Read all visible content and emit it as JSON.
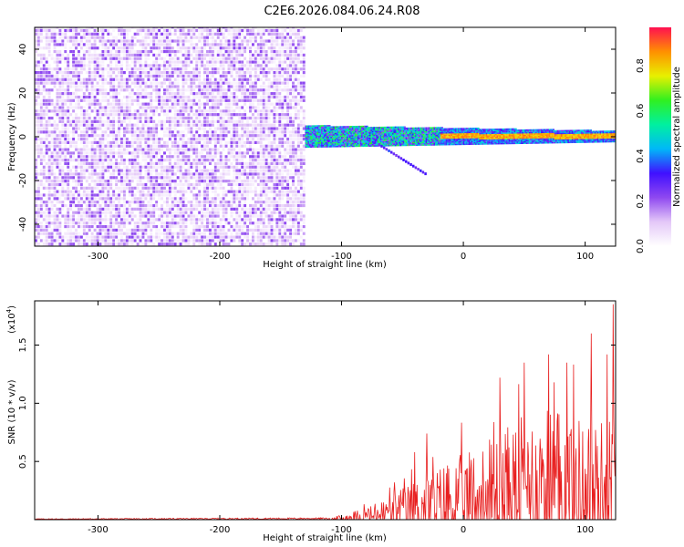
{
  "title": "C2E6.2026.084.06.24.R08",
  "chart_data": [
    {
      "type": "heatmap",
      "name": "spectrogram",
      "xlabel": "Height of straight line (km)",
      "ylabel": "Frequency (Hz)",
      "xlim": [
        -352,
        125
      ],
      "ylim": [
        -50,
        50
      ],
      "xticks": [
        -300,
        -200,
        -100,
        0,
        100
      ],
      "yticks": [
        -40,
        -20,
        0,
        20,
        40
      ],
      "colorbar": {
        "label": "Normalized spectral amplitude",
        "range": [
          0,
          0.97
        ],
        "ticks": [
          "0.0",
          "0.2",
          "0.4",
          "0.6",
          "0.8"
        ],
        "tick_values": [
          0.0,
          0.2,
          0.4,
          0.6,
          0.8
        ],
        "colors": [
          "#ffffff",
          "#e4c8f8",
          "#8f48f0",
          "#4010ff",
          "#00b8f8",
          "#00f0a0",
          "#30f020",
          "#e8f000",
          "#ff9000",
          "#ff1050"
        ]
      },
      "features": {
        "noise_region_x": [
          -352,
          -130
        ],
        "noise_amplitude": 0.15,
        "noise_frequency_range": [
          -50,
          50
        ],
        "signal_start_x": -130,
        "signal_center_frequency": 0,
        "signal_band_halfwidth": [
          5,
          2.5
        ],
        "strong_signal_x": [
          -20,
          125
        ],
        "strong_signal_amplitude": 0.9
      }
    },
    {
      "type": "line",
      "name": "snr",
      "xlabel": "Height of straight line (km)",
      "ylabel": "SNR (10 * v/v)",
      "scale_label": "(x10",
      "scale_exponent": "4",
      "xlim": [
        -352,
        125
      ],
      "ylim": [
        0,
        1.88
      ],
      "xticks": [
        -300,
        -200,
        -100,
        0,
        100
      ],
      "yticks": [
        "0.5",
        "1.0",
        "1.5"
      ],
      "ytick_values": [
        0.5,
        1.0,
        1.5
      ],
      "color": "#e82020",
      "envelope": {
        "x": [
          -352,
          -110,
          -90,
          -70,
          -50,
          -30,
          -10,
          10,
          30,
          50,
          70,
          90,
          110,
          120,
          125
        ],
        "y": [
          0.005,
          0.01,
          0.06,
          0.12,
          0.22,
          0.32,
          0.42,
          0.5,
          0.62,
          0.72,
          0.78,
          0.74,
          0.68,
          0.75,
          0.7
        ]
      },
      "spikes": [
        {
          "x": -40,
          "y": 0.58
        },
        {
          "x": -30,
          "y": 0.74
        },
        {
          "x": 30,
          "y": 1.22
        },
        {
          "x": 50,
          "y": 1.35
        },
        {
          "x": 70,
          "y": 1.42
        },
        {
          "x": 85,
          "y": 1.35
        },
        {
          "x": 105,
          "y": 1.6
        },
        {
          "x": 118,
          "y": 1.42
        },
        {
          "x": 123,
          "y": 1.85
        }
      ]
    }
  ]
}
